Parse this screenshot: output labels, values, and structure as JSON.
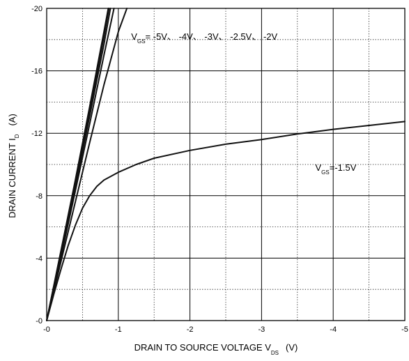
{
  "chart_data": {
    "type": "line",
    "xlabel": {
      "main": "DRAIN TO SOURCE VOLTAGE   V",
      "sub": "DS",
      "unit": "(V)"
    },
    "ylabel": {
      "main": "DRAIN CURRENT   I",
      "sub": "D",
      "unit": "(A)"
    },
    "xlim": [
      0,
      -5
    ],
    "ylim": [
      0,
      -20
    ],
    "x_major_ticks": [
      0,
      -1,
      -2,
      -3,
      -4,
      -5
    ],
    "x_tick_labels": [
      "-0",
      "-1",
      "-2",
      "-3",
      "-4",
      "-5"
    ],
    "y_major_ticks": [
      0,
      -4,
      -8,
      -12,
      -16,
      -20
    ],
    "y_tick_labels": [
      "-0",
      "-4",
      "-8",
      "-12",
      "-16",
      "-20"
    ],
    "grid": {
      "major": "solid",
      "minor": "dotted",
      "x_minor_step": -0.5,
      "y_minor_step": -2
    },
    "annotations": [
      {
        "id": "vgs-high",
        "prefix": "V",
        "sub": "GS",
        "text": "=  -5V、 -4V、 -3V、 -2.5V、 -2V",
        "x": -1.18,
        "y": -18.0
      },
      {
        "id": "vgs-low",
        "prefix": "V",
        "sub": "GS",
        "text": "=-1.5V",
        "x": -3.75,
        "y": -9.6
      }
    ],
    "series": [
      {
        "vgs": -5,
        "points": [
          [
            0,
            0
          ],
          [
            -0.2,
            -4.5
          ],
          [
            -0.4,
            -9.0
          ],
          [
            -0.6,
            -13.7
          ],
          [
            -0.8,
            -18.5
          ],
          [
            -0.86,
            -20
          ]
        ]
      },
      {
        "vgs": -4,
        "points": [
          [
            0,
            0
          ],
          [
            -0.2,
            -4.4
          ],
          [
            -0.4,
            -8.8
          ],
          [
            -0.6,
            -13.4
          ],
          [
            -0.8,
            -18.2
          ],
          [
            -0.87,
            -20
          ]
        ]
      },
      {
        "vgs": -3,
        "points": [
          [
            0,
            0
          ],
          [
            -0.2,
            -4.3
          ],
          [
            -0.4,
            -8.6
          ],
          [
            -0.6,
            -13.1
          ],
          [
            -0.8,
            -17.7
          ],
          [
            -0.89,
            -20
          ]
        ]
      },
      {
        "vgs": -2.5,
        "points": [
          [
            0,
            0
          ],
          [
            -0.2,
            -4.1
          ],
          [
            -0.4,
            -8.3
          ],
          [
            -0.6,
            -12.6
          ],
          [
            -0.8,
            -17.0
          ],
          [
            -0.94,
            -20
          ]
        ]
      },
      {
        "vgs": -2,
        "points": [
          [
            0,
            0
          ],
          [
            -0.2,
            -3.8
          ],
          [
            -0.4,
            -7.6
          ],
          [
            -0.6,
            -11.4
          ],
          [
            -0.8,
            -15.1
          ],
          [
            -1.0,
            -18.5
          ],
          [
            -1.12,
            -20
          ]
        ]
      },
      {
        "vgs": -1.5,
        "points": [
          [
            0,
            0
          ],
          [
            -0.1,
            -1.7
          ],
          [
            -0.2,
            -3.3
          ],
          [
            -0.3,
            -4.8
          ],
          [
            -0.4,
            -6.1
          ],
          [
            -0.5,
            -7.2
          ],
          [
            -0.6,
            -8.0
          ],
          [
            -0.7,
            -8.6
          ],
          [
            -0.8,
            -9.0
          ],
          [
            -1.0,
            -9.5
          ],
          [
            -1.25,
            -10.0
          ],
          [
            -1.5,
            -10.4
          ],
          [
            -2.0,
            -10.9
          ],
          [
            -2.5,
            -11.3
          ],
          [
            -3.0,
            -11.6
          ],
          [
            -3.5,
            -11.95
          ],
          [
            -4.0,
            -12.25
          ],
          [
            -4.5,
            -12.5
          ],
          [
            -5.0,
            -12.75
          ]
        ]
      }
    ]
  }
}
